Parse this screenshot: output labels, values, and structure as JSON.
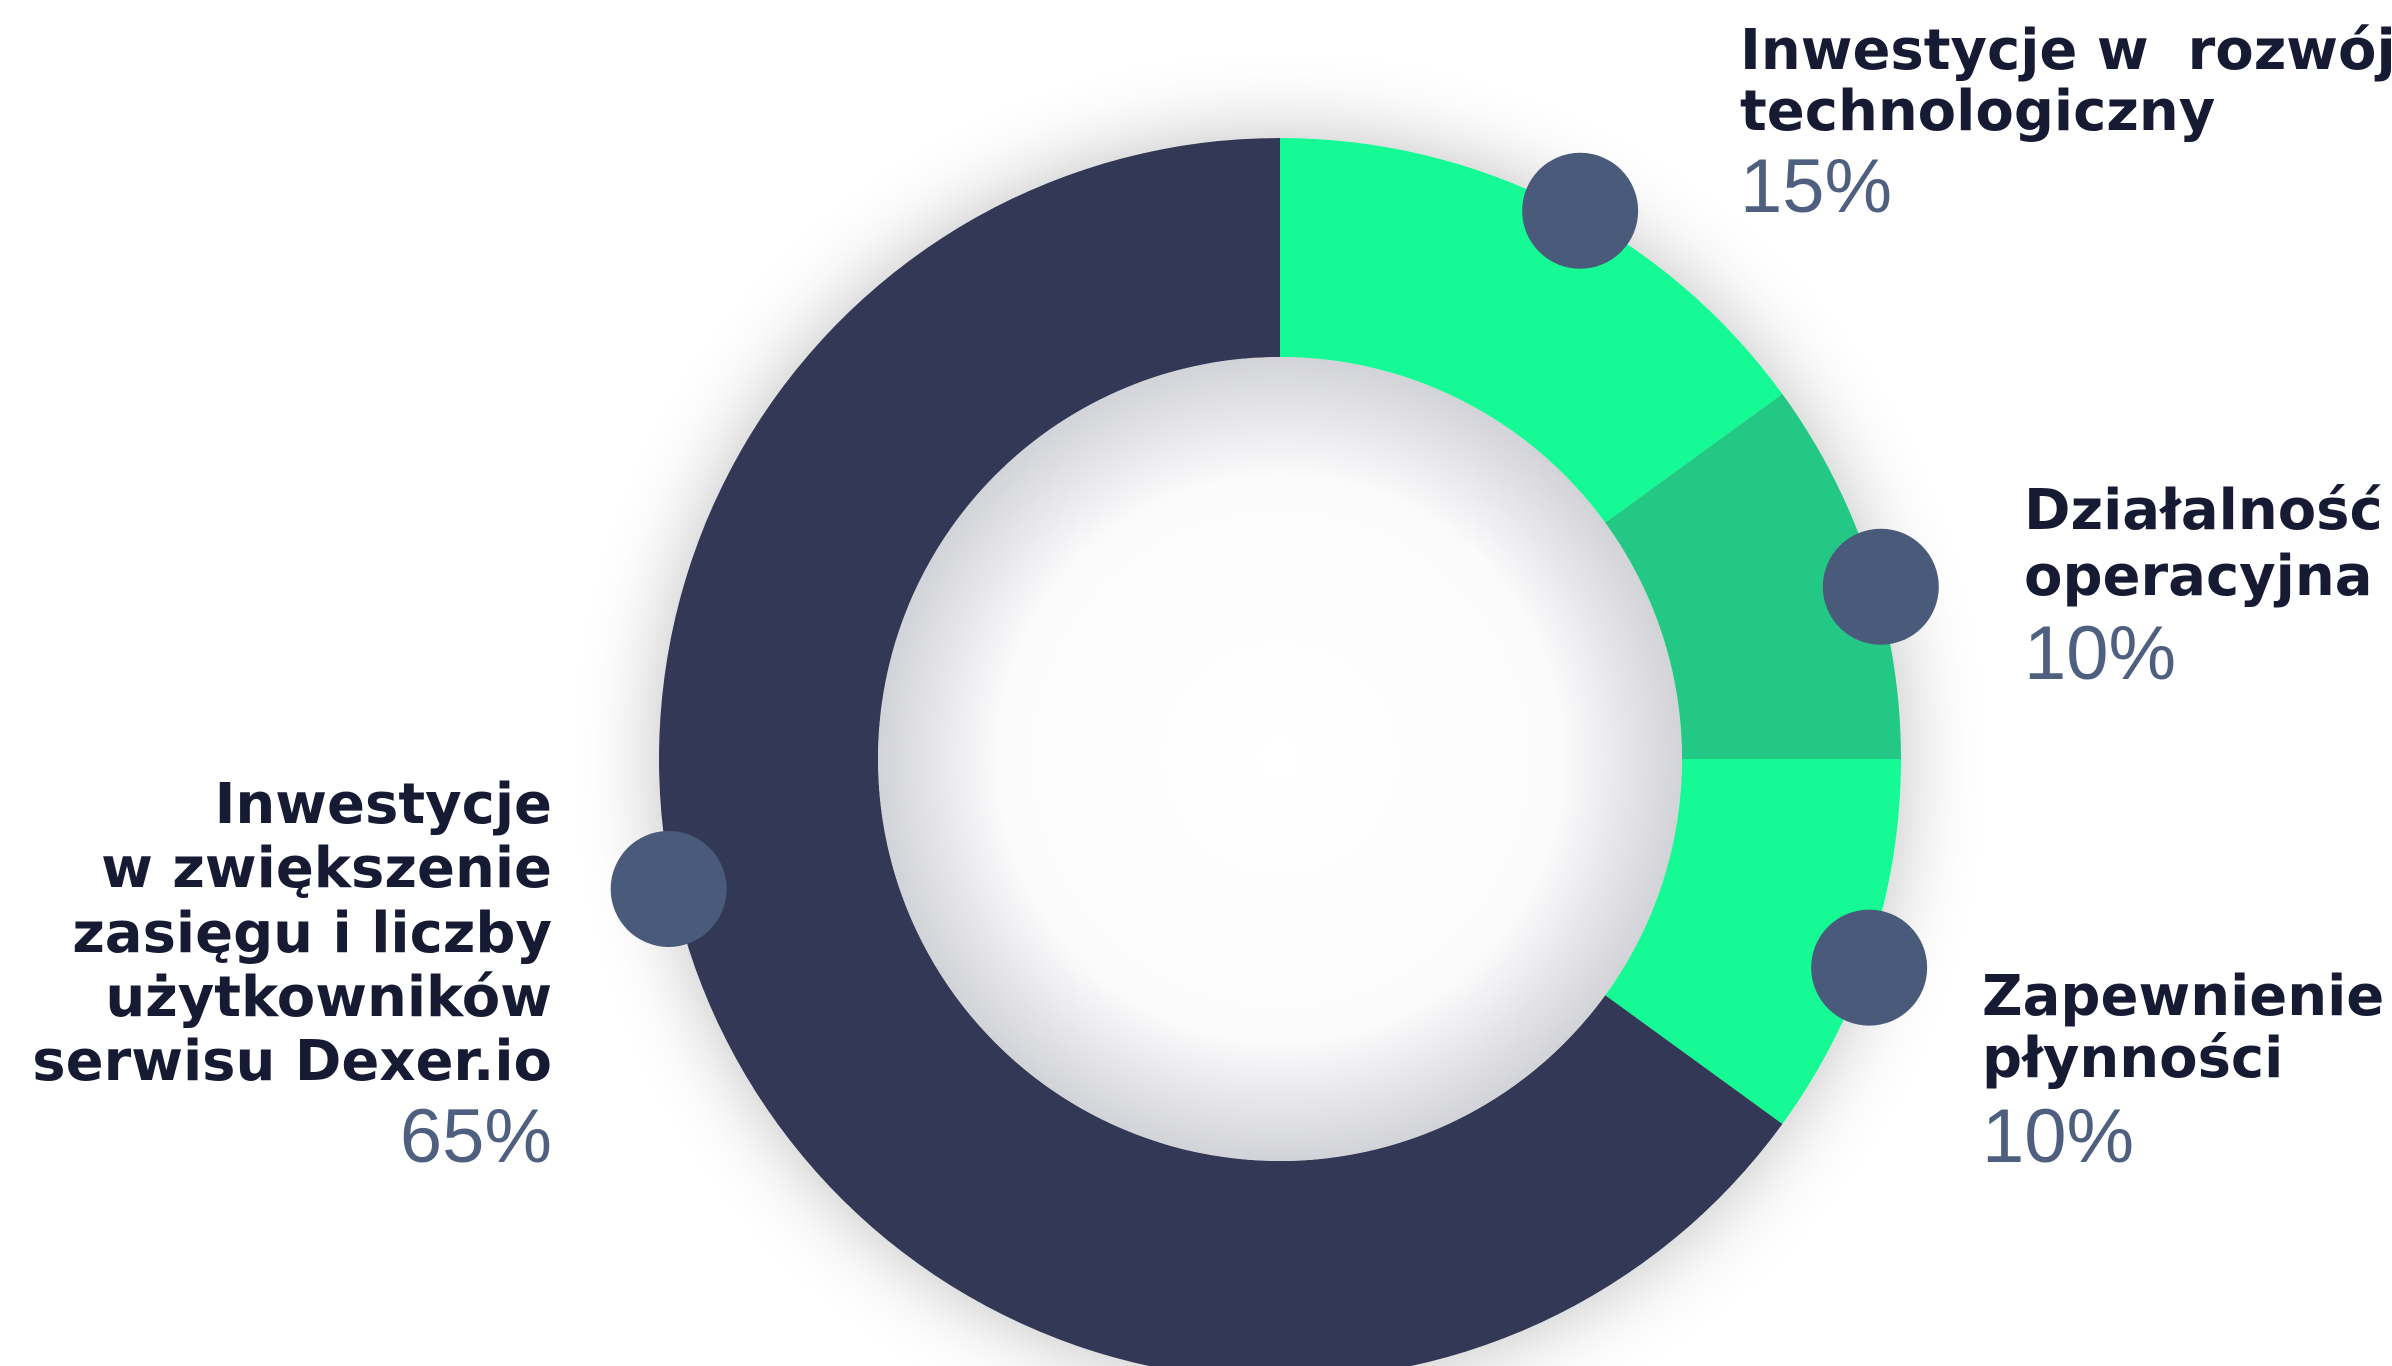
{
  "chart_data": {
    "type": "pie",
    "donut": true,
    "categories": [
      [
        "Inwestycje w  rozwój",
        "technologiczny"
      ],
      [
        "Działalność",
        "operacyjna"
      ],
      [
        "Zapewnienie",
        "płynności"
      ],
      [
        "Inwestycje",
        "w zwiększenie",
        "zasięgu i liczby",
        "użytkowników",
        "serwisu Dexer.io"
      ]
    ],
    "values": [
      15,
      10,
      10,
      65
    ],
    "value_labels": [
      "15%",
      "10%",
      "10%",
      "65%"
    ],
    "colors": [
      "#15fa96",
      "#22c883",
      "#15fa96",
      "#323854"
    ]
  }
}
